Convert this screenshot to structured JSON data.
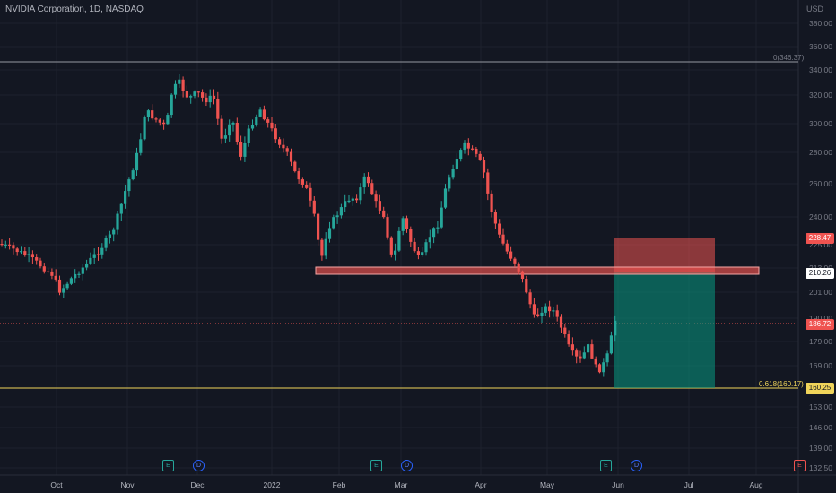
{
  "header": {
    "title": "NVIDIA Corporation, 1D, NASDAQ",
    "currency": "USD"
  },
  "price_axis": [
    "380.00",
    "360.00",
    "340.00",
    "320.00",
    "300.00",
    "280.00",
    "260.00",
    "240.00",
    "225.00",
    "213.00",
    "201.00",
    "190.00",
    "179.00",
    "169.00",
    "160.00",
    "153.00",
    "146.00",
    "139.00",
    "132.50"
  ],
  "date_axis": [
    "Oct",
    "Nov",
    "Dec",
    "2022",
    "Feb",
    "Mar",
    "Apr",
    "May",
    "Jun",
    "Jul",
    "Aug"
  ],
  "fib": {
    "level0": "0(346.37)",
    "level618": "0.618(160.17)"
  },
  "price_tags": {
    "stop": "228.47",
    "entry": "210.26",
    "current": "186.72",
    "target": "160.25"
  },
  "events": {
    "earnings": "E",
    "dividends": "D"
  },
  "colors": {
    "up": "#26a69a",
    "down": "#ef5350",
    "fib": "#f0d45a",
    "background": "#131722"
  }
}
